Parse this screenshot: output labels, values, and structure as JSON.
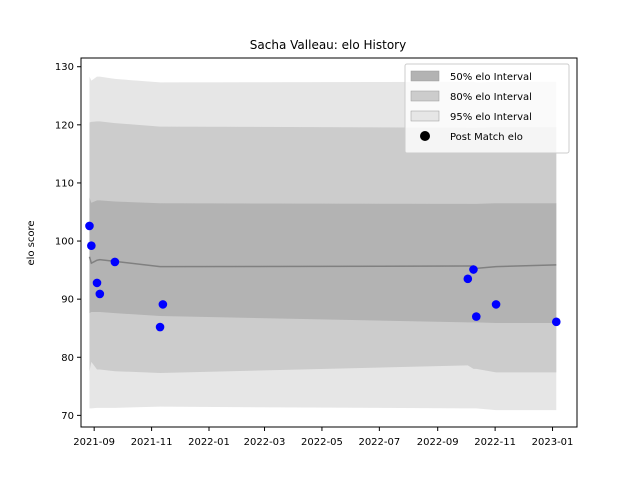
{
  "chart_data": {
    "type": "scatter",
    "title": "Sacha Valleau: elo History",
    "xlabel": "",
    "ylabel": "elo score",
    "x_ticks": [
      "2021-09",
      "2021-11",
      "2022-01",
      "2022-03",
      "2022-05",
      "2022-07",
      "2022-09",
      "2022-11",
      "2023-01"
    ],
    "x_tick_dates": [
      "2021-09-01",
      "2021-11-01",
      "2022-01-01",
      "2022-03-01",
      "2022-05-01",
      "2022-07-01",
      "2022-09-01",
      "2022-11-01",
      "2023-01-01"
    ],
    "xlim": [
      "2021-08-18",
      "2023-01-27"
    ],
    "y_ticks": [
      70,
      80,
      90,
      100,
      110,
      120,
      130
    ],
    "ylim": [
      68,
      131.5
    ],
    "legend_position": "upper-right",
    "grid": false,
    "legend": [
      {
        "label": "50% elo Interval",
        "kind": "band",
        "color": "#b3b3b3"
      },
      {
        "label": "80% elo Interval",
        "kind": "band",
        "color": "#cccccc"
      },
      {
        "label": "95% elo Interval",
        "kind": "band",
        "color": "#e6e6e6"
      },
      {
        "label": "Post Match elo",
        "kind": "marker",
        "color": "#000000"
      }
    ],
    "series": [
      {
        "name": "Post Match elo",
        "color": "#0000ff",
        "points": [
          {
            "x": "2021-08-27",
            "y": 102.6
          },
          {
            "x": "2021-08-29",
            "y": 99.2
          },
          {
            "x": "2021-09-04",
            "y": 92.8
          },
          {
            "x": "2021-09-07",
            "y": 90.9
          },
          {
            "x": "2021-09-23",
            "y": 96.4
          },
          {
            "x": "2021-11-10",
            "y": 85.2
          },
          {
            "x": "2021-11-13",
            "y": 89.1
          },
          {
            "x": "2022-10-03",
            "y": 93.5
          },
          {
            "x": "2022-10-09",
            "y": 95.1
          },
          {
            "x": "2022-10-12",
            "y": 87.0
          },
          {
            "x": "2022-11-02",
            "y": 89.1
          },
          {
            "x": "2023-01-05",
            "y": 86.1
          }
        ]
      }
    ],
    "mean_line": {
      "color": "#808080",
      "points": [
        {
          "x": "2021-08-27",
          "y": 97.3
        },
        {
          "x": "2021-08-29",
          "y": 96.2
        },
        {
          "x": "2021-09-04",
          "y": 96.7
        },
        {
          "x": "2021-09-07",
          "y": 96.8
        },
        {
          "x": "2021-09-23",
          "y": 96.5
        },
        {
          "x": "2021-11-10",
          "y": 95.6
        },
        {
          "x": "2022-10-03",
          "y": 95.7
        },
        {
          "x": "2022-10-09",
          "y": 95.7
        },
        {
          "x": "2022-10-12",
          "y": 95.3
        },
        {
          "x": "2022-11-02",
          "y": 95.6
        },
        {
          "x": "2023-01-05",
          "y": 95.9
        }
      ]
    },
    "bands": [
      {
        "name": "95% elo Interval",
        "color": "#e6e6e6",
        "x": [
          "2021-08-27",
          "2021-08-29",
          "2021-09-04",
          "2021-09-07",
          "2021-09-23",
          "2021-11-10",
          "2022-10-03",
          "2022-10-09",
          "2022-10-12",
          "2022-11-02",
          "2023-01-05"
        ],
        "upper": [
          128.3,
          127.6,
          128.3,
          128.3,
          127.9,
          127.3,
          127.4,
          127.4,
          127.3,
          127.4,
          127.4
        ],
        "lower": [
          71.2,
          71.2,
          71.3,
          71.3,
          71.3,
          71.5,
          71.2,
          71.2,
          71.2,
          70.9,
          70.9
        ]
      },
      {
        "name": "80% elo Interval",
        "color": "#cccccc",
        "x": [
          "2021-08-27",
          "2021-08-29",
          "2021-09-04",
          "2021-09-07",
          "2021-09-23",
          "2021-11-10",
          "2022-10-03",
          "2022-10-09",
          "2022-10-12",
          "2022-11-02",
          "2023-01-05"
        ],
        "upper": [
          120.4,
          120.5,
          120.6,
          120.6,
          120.3,
          119.7,
          119.5,
          119.5,
          119.5,
          119.6,
          119.6
        ],
        "lower": [
          77.6,
          79.2,
          77.9,
          77.9,
          77.6,
          77.3,
          78.6,
          78.0,
          78.0,
          77.4,
          77.4
        ]
      },
      {
        "name": "50% elo Interval",
        "color": "#b3b3b3",
        "x": [
          "2021-08-27",
          "2021-08-29",
          "2021-09-04",
          "2021-09-07",
          "2021-09-23",
          "2021-11-10",
          "2022-10-03",
          "2022-10-09",
          "2022-10-12",
          "2022-11-02",
          "2023-01-05"
        ],
        "upper": [
          107.5,
          106.6,
          107.0,
          107.0,
          106.8,
          106.5,
          106.4,
          106.4,
          106.4,
          106.5,
          106.5
        ],
        "lower": [
          87.6,
          87.8,
          87.8,
          87.8,
          87.6,
          87.1,
          86.0,
          86.0,
          86.0,
          85.9,
          85.9
        ]
      }
    ]
  }
}
